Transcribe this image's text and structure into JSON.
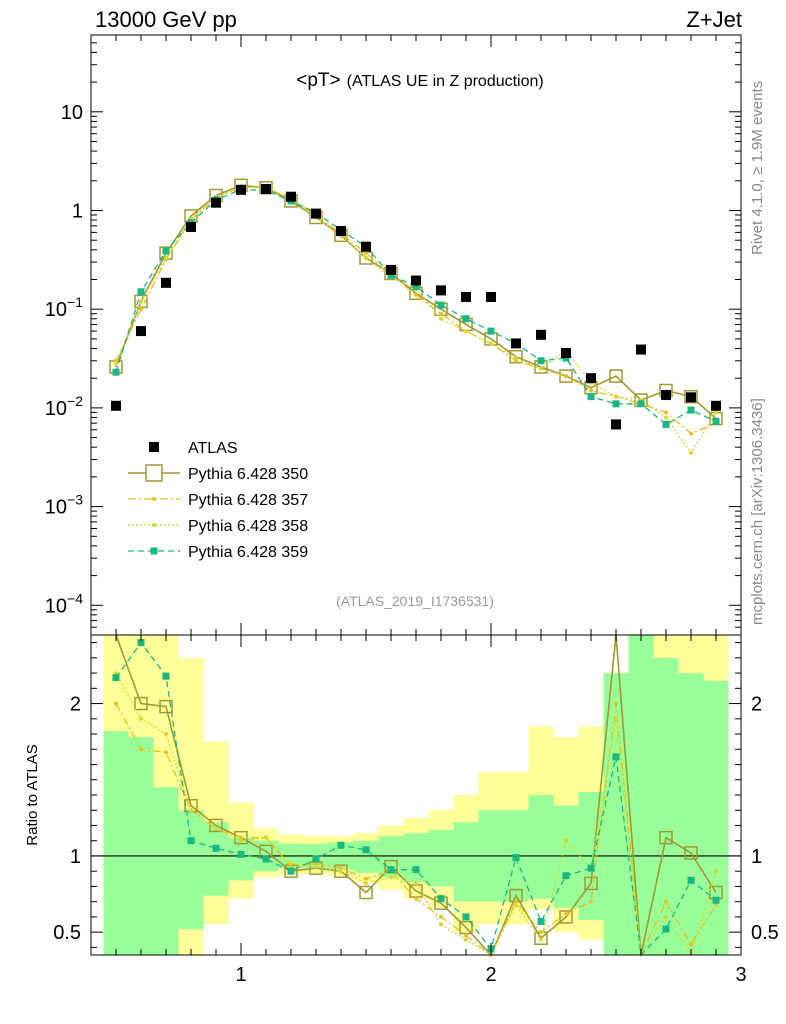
{
  "header": {
    "left": "13000 GeV pp",
    "right": "Z+Jet"
  },
  "side_labels": {
    "rivet": "Rivet 4.1.0, ≥ 1.9M events",
    "mcplots": "mcplots.cern.ch [arXiv:1306.3436]"
  },
  "chart_data": [
    {
      "type": "line",
      "title_main": "<pT>",
      "title_sub": "(ATLAS UE in Z production)",
      "analysis_tag": "(ATLAS_2019_I1736531)",
      "yscale": "log",
      "xlim": [
        0.4,
        3.0
      ],
      "ylim": [
        5e-05,
        60
      ],
      "y_ticks": [
        {
          "v": 0.0001,
          "base": "10",
          "exp": "−4"
        },
        {
          "v": 0.001,
          "base": "10",
          "exp": "−3"
        },
        {
          "v": 0.01,
          "base": "10",
          "exp": "−2"
        },
        {
          "v": 0.1,
          "base": "10",
          "exp": "−1"
        },
        {
          "v": 1,
          "base": "1",
          "exp": ""
        },
        {
          "v": 10,
          "base": "10",
          "exp": ""
        }
      ],
      "x": [
        0.5,
        0.6,
        0.7,
        0.8,
        0.9,
        1.0,
        1.1,
        1.2,
        1.3,
        1.4,
        1.5,
        1.6,
        1.7,
        1.8,
        1.9,
        2.0,
        2.1,
        2.2,
        2.3,
        2.4,
        2.5,
        2.6,
        2.7,
        2.8,
        2.9
      ],
      "legend": [
        {
          "name": "ATLAS",
          "style": "data"
        },
        {
          "name": "Pythia 6.428 350",
          "style": "s350"
        },
        {
          "name": "Pythia 6.428 357",
          "style": "s357"
        },
        {
          "name": "Pythia 6.428 358",
          "style": "s358"
        },
        {
          "name": "Pythia 6.428 359",
          "style": "s359"
        }
      ],
      "series": [
        {
          "name": "ATLAS",
          "color": "#000000",
          "values": [
            0.0105,
            0.06,
            0.185,
            0.68,
            1.2,
            1.62,
            1.65,
            1.38,
            0.93,
            0.62,
            0.43,
            0.25,
            0.195,
            0.155,
            0.133,
            0.133,
            0.045,
            0.055,
            0.036,
            0.02,
            0.0068,
            0.039,
            0.0135,
            0.0128,
            0.0105
          ]
        },
        {
          "name": "Pythia 6.428 350",
          "color": "#A09830",
          "values": [
            0.026,
            0.12,
            0.37,
            0.88,
            1.42,
            1.8,
            1.7,
            1.25,
            0.85,
            0.56,
            0.33,
            0.23,
            0.145,
            0.1,
            0.07,
            0.05,
            0.033,
            0.026,
            0.021,
            0.016,
            0.021,
            0.012,
            0.015,
            0.013,
            0.0078
          ]
        },
        {
          "name": "Pythia 6.428 357",
          "color": "#E5C020",
          "values": [
            0.03,
            0.1,
            0.32,
            0.8,
            1.35,
            1.72,
            1.72,
            1.3,
            0.9,
            0.58,
            0.37,
            0.22,
            0.14,
            0.09,
            0.06,
            0.045,
            0.03,
            0.025,
            0.021,
            0.015,
            0.013,
            0.011,
            0.009,
            0.0055,
            0.007
          ]
        },
        {
          "name": "Pythia 6.428 358",
          "color": "#D8D828",
          "values": [
            0.028,
            0.12,
            0.33,
            0.82,
            1.38,
            1.72,
            1.72,
            1.3,
            0.85,
            0.55,
            0.33,
            0.21,
            0.16,
            0.08,
            0.06,
            0.045,
            0.032,
            0.025,
            0.038,
            0.018,
            0.013,
            0.012,
            0.008,
            0.0035,
            0.009
          ]
        },
        {
          "name": "Pythia 6.428 359",
          "color": "#18B880",
          "values": [
            0.023,
            0.15,
            0.39,
            0.75,
            1.28,
            1.63,
            1.6,
            1.25,
            0.95,
            0.63,
            0.43,
            0.22,
            0.17,
            0.11,
            0.08,
            0.06,
            0.045,
            0.03,
            0.032,
            0.013,
            0.011,
            0.011,
            0.0068,
            0.0095,
            0.0073
          ]
        }
      ]
    },
    {
      "type": "line",
      "ylabel": "Ratio to ATLAS",
      "xlim": [
        0.4,
        3.0
      ],
      "ylim": [
        0.35,
        2.45
      ],
      "x_ticks": [
        1,
        2,
        3
      ],
      "y_ticks": [
        0.5,
        1,
        2
      ],
      "reference": 1,
      "bands": {
        "x": [
          0.45,
          0.55,
          0.65,
          0.75,
          0.85,
          0.95,
          1.05,
          1.15,
          1.25,
          1.35,
          1.45,
          1.55,
          1.65,
          1.75,
          1.85,
          1.95,
          2.05,
          2.15,
          2.25,
          2.35,
          2.45,
          2.55,
          2.65,
          2.75,
          2.85,
          2.95
        ],
        "yellow_lo": [
          0.35,
          0.35,
          0.35,
          0.35,
          0.55,
          0.72,
          0.86,
          0.88,
          0.88,
          0.87,
          0.83,
          0.78,
          0.72,
          0.66,
          0.5,
          0.55,
          0.55,
          0.65,
          0.5,
          0.45,
          0.35,
          0.35,
          0.35,
          0.35,
          0.35
        ],
        "yellow_hi": [
          2.45,
          2.45,
          2.45,
          2.3,
          1.75,
          1.35,
          1.18,
          1.14,
          1.13,
          1.13,
          1.15,
          1.2,
          1.25,
          1.3,
          1.4,
          1.55,
          1.55,
          1.85,
          1.78,
          1.85,
          2.1,
          2.45,
          2.45,
          2.45,
          2.45
        ],
        "green_lo": [
          0.35,
          0.35,
          0.35,
          0.52,
          0.74,
          0.84,
          0.9,
          0.92,
          0.92,
          0.91,
          0.89,
          0.86,
          0.83,
          0.8,
          0.7,
          0.7,
          0.7,
          0.72,
          0.66,
          0.58,
          0.35,
          0.35,
          0.35,
          0.35,
          0.35
        ],
        "green_hi": [
          1.82,
          1.78,
          1.45,
          1.3,
          1.22,
          1.12,
          1.1,
          1.08,
          1.08,
          1.09,
          1.1,
          1.13,
          1.15,
          1.17,
          1.22,
          1.3,
          1.3,
          1.4,
          1.33,
          1.42,
          2.2,
          2.45,
          2.3,
          2.2,
          2.15
        ]
      },
      "series": [
        {
          "name": "Pythia 6.428 350",
          "values": [
            2.5,
            2.0,
            1.98,
            1.33,
            1.2,
            1.12,
            1.03,
            0.9,
            0.92,
            0.9,
            0.76,
            0.93,
            0.77,
            0.69,
            0.53,
            0.3,
            0.74,
            0.46,
            0.6,
            0.82,
            2.6,
            0.3,
            1.12,
            1.02,
            0.76
          ]
        },
        {
          "name": "Pythia 6.428 357",
          "values": [
            2.0,
            1.7,
            1.68,
            1.3,
            1.18,
            1.12,
            1.12,
            0.93,
            0.95,
            0.92,
            0.85,
            0.9,
            0.72,
            0.6,
            0.48,
            0.34,
            0.7,
            0.5,
            0.62,
            0.7,
            2.0,
            0.3,
            0.7,
            0.42,
            0.68
          ]
        },
        {
          "name": "Pythia 6.428 358",
          "values": [
            2.2,
            1.9,
            1.8,
            1.3,
            1.18,
            1.1,
            1.12,
            0.95,
            0.93,
            0.9,
            0.82,
            0.86,
            0.82,
            0.55,
            0.45,
            0.35,
            0.68,
            0.45,
            1.1,
            0.92,
            1.9,
            0.3,
            0.6,
            0.28,
            0.9
          ]
        },
        {
          "name": "Pythia 6.428 359",
          "values": [
            2.17,
            2.4,
            2.18,
            1.1,
            1.05,
            1.01,
            0.98,
            0.9,
            0.98,
            1.07,
            1.04,
            0.91,
            0.91,
            0.72,
            0.6,
            0.39,
            0.99,
            0.57,
            0.87,
            0.92,
            1.65,
            0.3,
            0.52,
            0.84,
            0.71
          ]
        }
      ]
    }
  ]
}
